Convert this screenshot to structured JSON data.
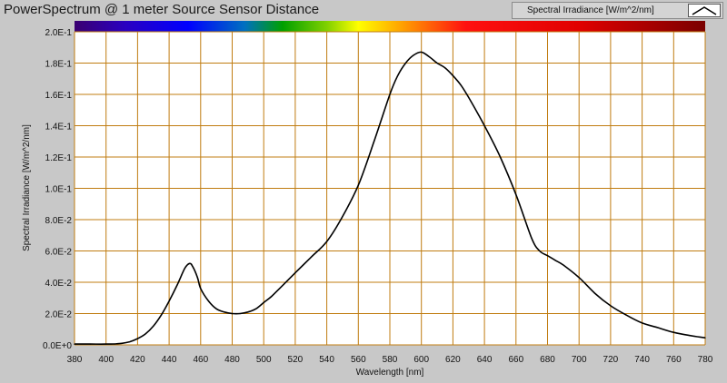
{
  "window": {
    "title": "PowerSpectrum @ 1 meter Source Sensor Distance"
  },
  "legend": {
    "label": "Spectral Irradiance [W/m^2/nm]",
    "swatch_icon": "line-peak-icon"
  },
  "colors": {
    "background": "#c8c8c8",
    "plot_area": "#ffffff",
    "grid": "#c07c10",
    "series": "#000000"
  },
  "chart_data": {
    "type": "line",
    "title": "PowerSpectrum @ 1 meter Source Sensor Distance",
    "xlabel": "Wavelength [nm]",
    "ylabel": "Spectral Irradiance [W/m^2/nm]",
    "xlim": [
      380,
      780
    ],
    "ylim": [
      0,
      0.2
    ],
    "grid": true,
    "legend_position": "top-right",
    "x_ticks": [
      "380",
      "400",
      "420",
      "440",
      "460",
      "480",
      "500",
      "520",
      "540",
      "560",
      "580",
      "600",
      "620",
      "640",
      "660",
      "680",
      "700",
      "720",
      "740",
      "760",
      "780"
    ],
    "y_ticks": [
      "0.0E+0",
      "2.0E-2",
      "4.0E-2",
      "6.0E-2",
      "8.0E-2",
      "1.0E-1",
      "1.2E-1",
      "1.4E-1",
      "1.6E-1",
      "1.8E-1",
      "2.0E-1"
    ],
    "series": [
      {
        "name": "Spectral Irradiance [W/m^2/nm]",
        "x": [
          380,
          390,
          400,
          405,
          410,
          415,
          420,
          425,
          430,
          435,
          440,
          445,
          450,
          453,
          455,
          458,
          460,
          465,
          470,
          475,
          480,
          485,
          490,
          495,
          500,
          505,
          510,
          520,
          530,
          540,
          550,
          560,
          570,
          580,
          585,
          590,
          595,
          600,
          605,
          610,
          615,
          620,
          625,
          630,
          640,
          650,
          660,
          670,
          675,
          680,
          685,
          690,
          700,
          710,
          720,
          730,
          740,
          750,
          760,
          770,
          780
        ],
        "y": [
          0.0005,
          0.0005,
          0.0005,
          0.0006,
          0.001,
          0.002,
          0.004,
          0.007,
          0.012,
          0.019,
          0.028,
          0.038,
          0.049,
          0.052,
          0.05,
          0.043,
          0.036,
          0.028,
          0.023,
          0.021,
          0.02,
          0.02,
          0.021,
          0.023,
          0.027,
          0.031,
          0.036,
          0.046,
          0.056,
          0.066,
          0.082,
          0.102,
          0.13,
          0.16,
          0.172,
          0.18,
          0.185,
          0.187,
          0.184,
          0.18,
          0.177,
          0.172,
          0.166,
          0.158,
          0.14,
          0.12,
          0.096,
          0.068,
          0.06,
          0.057,
          0.054,
          0.051,
          0.043,
          0.033,
          0.025,
          0.019,
          0.014,
          0.011,
          0.008,
          0.006,
          0.0045
        ]
      }
    ]
  }
}
